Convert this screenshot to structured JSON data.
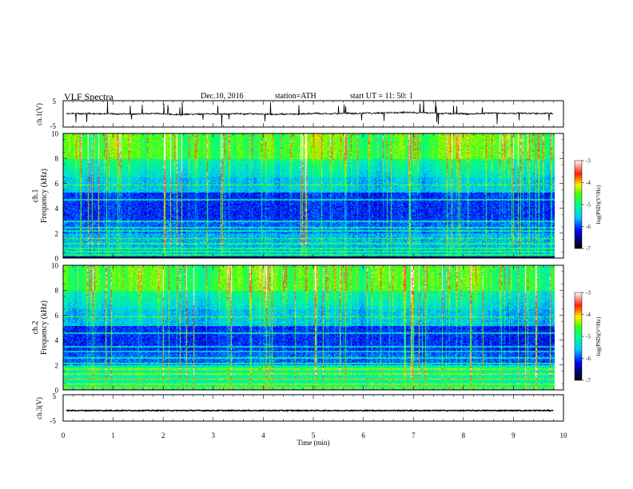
{
  "header": {
    "title": "VLF  Spectra",
    "date": "Dec.10, 2016",
    "station": "station=ATH",
    "start_ut": "start  UT  =    11: 50: 1"
  },
  "chart_data": [
    {
      "type": "line",
      "panel": "ch.1 waveform",
      "ylabel": "ch.1(V)",
      "yticks": [
        "5",
        "-5"
      ],
      "ylim": [
        -5,
        5
      ],
      "x_units": "min",
      "xlim": [
        0,
        10
      ],
      "data_extent_min": 9.8,
      "series": [
        {
          "baseline": 0,
          "noise_amplitude": 1.0,
          "spike_amplitude": 4.5
        }
      ],
      "color": "#000000"
    },
    {
      "type": "heatmap",
      "panel": "ch.1 spectrogram",
      "ylabel": "ch.1\nFrequency  (kHz)",
      "yticks": [
        "0",
        "2",
        "4",
        "6",
        "8",
        "10"
      ],
      "ylim": [
        0,
        10
      ],
      "xlim": [
        0,
        10
      ],
      "colorbar": {
        "label": "log(PSD)(V²/Hz)",
        "ticks": [
          "-3",
          "-4",
          "-5",
          "-6",
          "-7"
        ],
        "range": [
          -7,
          -3
        ]
      }
    },
    {
      "type": "heatmap",
      "panel": "ch.2 spectrogram",
      "ylabel": "ch.2\nFrequency  (kHz)",
      "yticks": [
        "0",
        "2",
        "4",
        "6",
        "8",
        "10"
      ],
      "ylim": [
        0,
        10
      ],
      "xlim": [
        0,
        10
      ],
      "colorbar": {
        "label": "log(PSD)(V²/Hz)",
        "ticks": [
          "-3",
          "-4",
          "-5",
          "-6",
          "-7"
        ],
        "range": [
          -7,
          -3
        ]
      }
    },
    {
      "type": "line",
      "panel": "ch.3 waveform",
      "ylabel": "ch.3(V)",
      "yticks": [
        "5",
        "-5"
      ],
      "ylim": [
        -5,
        5
      ],
      "xlim": [
        0,
        10
      ],
      "series": [
        {
          "baseline": -1,
          "noise_amplitude": 0.3
        }
      ],
      "color": "#000000"
    }
  ],
  "xaxis": {
    "label": "Time  (min)",
    "ticks": [
      "0",
      "1",
      "2",
      "3",
      "4",
      "5",
      "6",
      "7",
      "8",
      "9",
      "10"
    ]
  }
}
